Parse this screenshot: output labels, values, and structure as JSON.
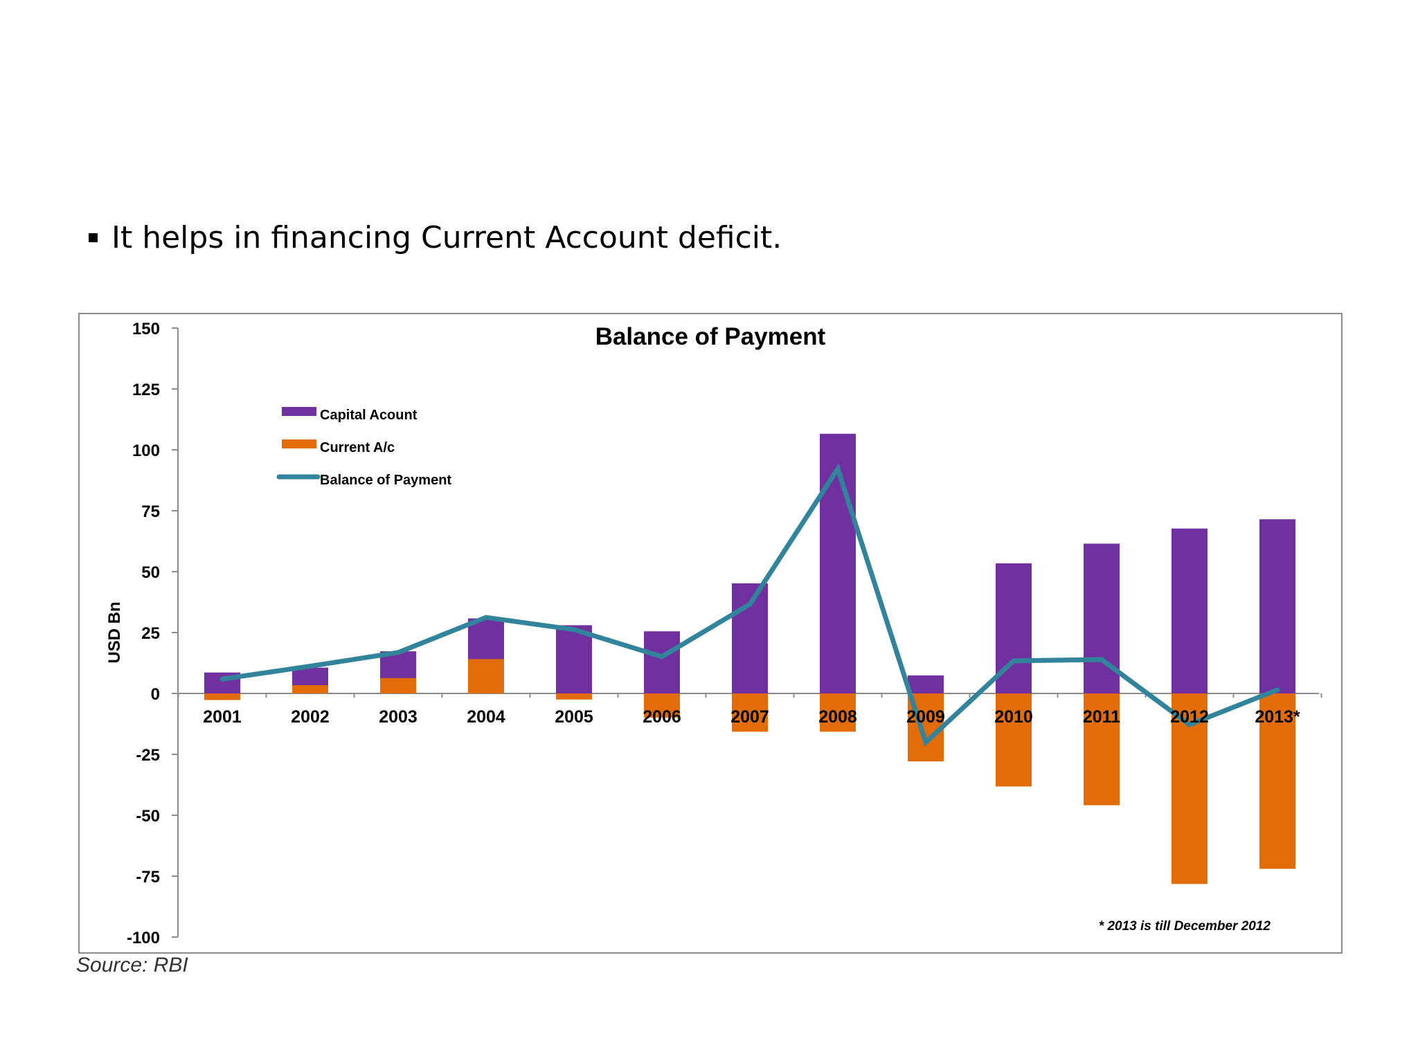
{
  "slide": {
    "bullet_text": "It helps in financing Current Account deficit.",
    "source": "Source: RBI"
  },
  "chart_data": {
    "type": "bar",
    "title": "Balance of Payment",
    "ylabel": "USD Bn",
    "xlabel": "",
    "ylim": [
      -100,
      150
    ],
    "yticks": [
      150,
      125,
      100,
      75,
      50,
      25,
      0,
      -25,
      -50,
      -75,
      -100
    ],
    "categories": [
      "2001",
      "2002",
      "2003",
      "2004",
      "2005",
      "2006",
      "2007",
      "2008",
      "2009",
      "2010",
      "2011",
      "2012",
      "2013*"
    ],
    "series": [
      {
        "name": "Capital Acount",
        "type": "bar",
        "color": "#7030a0",
        "values": [
          8.6,
          10.6,
          17.3,
          30.8,
          28,
          25.5,
          45.2,
          106.6,
          7.4,
          53.4,
          61.5,
          67.7,
          71.5
        ]
      },
      {
        "name": "Current A/c",
        "type": "bar",
        "color": "#e36c0a",
        "values": [
          -2.7,
          3.4,
          6.3,
          14.1,
          -2.5,
          -9.9,
          -15.7,
          -15.7,
          -27.9,
          -38.2,
          -45.9,
          -78.2,
          -72
        ]
      },
      {
        "name": "Balance of Payment",
        "type": "line",
        "color": "#31849b",
        "values": [
          5.9,
          11.2,
          16.8,
          31.2,
          26.2,
          15.1,
          36.6,
          92.2,
          -20.1,
          13.4,
          13.9,
          -12.8,
          1.5
        ]
      }
    ],
    "legend_position": "top-left",
    "annotation": "* 2013 is till December  2012",
    "grid": false
  }
}
